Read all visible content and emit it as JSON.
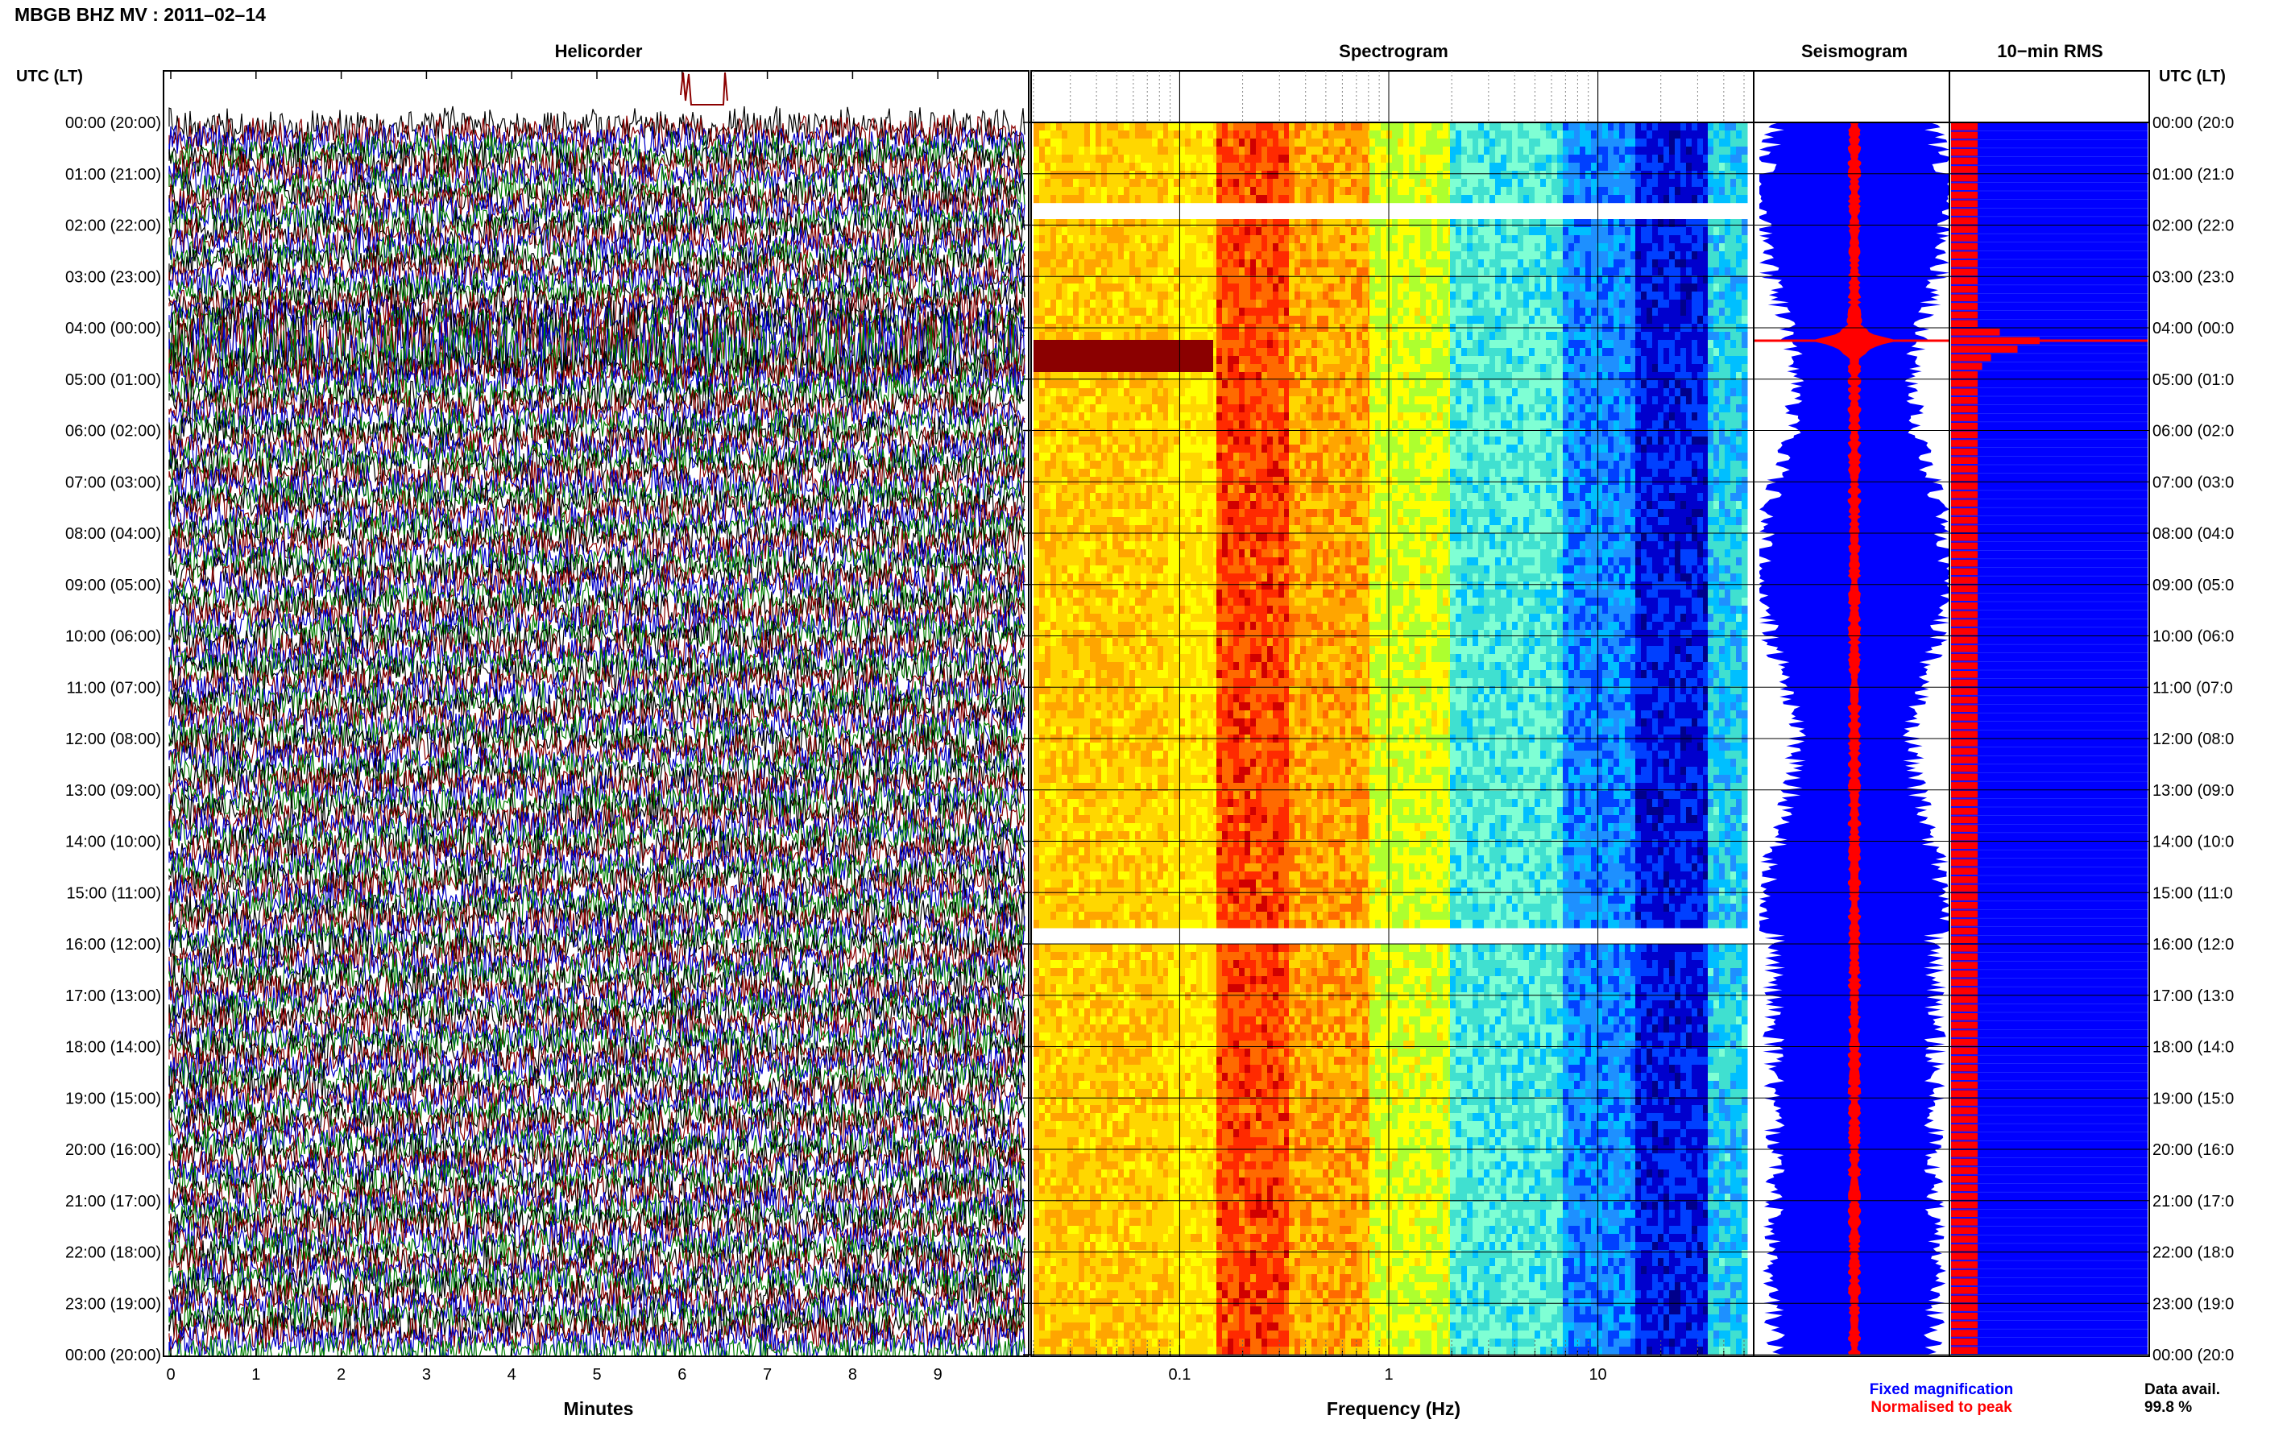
{
  "station_title": "MBGB BHZ MV : 2011–02–14",
  "utc_header_left": "UTC (LT)",
  "utc_header_right": "UTC (LT)",
  "panels": {
    "helicorder": "Helicorder",
    "spectrogram": "Spectrogram",
    "seismogram": "Seismogram",
    "rms": "10−min RMS"
  },
  "time_labels": [
    "00:00 (20:00)",
    "01:00 (21:00)",
    "02:00 (22:00)",
    "03:00 (23:00)",
    "04:00 (00:00)",
    "05:00 (01:00)",
    "06:00 (02:00)",
    "07:00 (03:00)",
    "08:00 (04:00)",
    "09:00 (05:00)",
    "10:00 (06:00)",
    "11:00 (07:00)",
    "12:00 (08:00)",
    "13:00 (09:00)",
    "14:00 (10:00)",
    "15:00 (11:00)",
    "16:00 (12:00)",
    "17:00 (13:00)",
    "18:00 (14:00)",
    "19:00 (15:00)",
    "20:00 (16:00)",
    "21:00 (17:00)",
    "22:00 (18:00)",
    "23:00 (19:00)",
    "00:00 (20:00)"
  ],
  "right_time_labels": [
    "00:00 (20:0",
    "01:00 (21:0",
    "02:00 (22:0",
    "03:00 (23:0",
    "04:00 (00:0",
    "05:00 (01:0",
    "06:00 (02:0",
    "07:00 (03:0",
    "08:00 (04:0",
    "09:00 (05:0",
    "10:00 (06:0",
    "11:00 (07:0",
    "12:00 (08:0",
    "13:00 (09:0",
    "14:00 (10:0",
    "15:00 (11:0",
    "16:00 (12:0",
    "17:00 (13:0",
    "18:00 (14:0",
    "19:00 (15:0",
    "20:00 (16:0",
    "21:00 (17:0",
    "22:00 (18:0",
    "23:00 (19:0",
    "00:00 (20:0"
  ],
  "helicorder_x": {
    "label": "Minutes",
    "ticks": [
      "0",
      "1",
      "2",
      "3",
      "4",
      "5",
      "6",
      "7",
      "8",
      "9"
    ],
    "range": [
      0,
      10
    ],
    "trace_colors": [
      "#000000",
      "#8b0000",
      "#0000cc",
      "#008000"
    ]
  },
  "spectrogram_x": {
    "label": "Frequency (Hz)",
    "ticks": [
      "0.1",
      "1",
      "10"
    ],
    "scale": "log",
    "range": [
      0.02,
      50
    ]
  },
  "legend": {
    "fixed": "Fixed magnification",
    "normalised": "Normalised to peak",
    "fixed_color": "#0000ff",
    "normalised_color": "#ff0000"
  },
  "data_avail": {
    "label": "Data avail.",
    "value": "99.8 %"
  },
  "chart_data": {
    "type": "heatmap",
    "title": "MBGB BHZ MV : 2011–02–14",
    "y_axis": "UTC (LT)",
    "y_range_hours": [
      0,
      24
    ],
    "events": [
      {
        "utc_hour": 4.25,
        "description_visible": false,
        "peak_rms_bin": true
      }
    ],
    "gaps_utc_hours": [
      1.65,
      15.8
    ],
    "rms_10min_relative": [
      0.3,
      0.3,
      0.3,
      0.3,
      0.3,
      0.3,
      0.3,
      0.3,
      0.3,
      0.3,
      0.3,
      0.3,
      0.3,
      0.3,
      0.3,
      0.3,
      0.3,
      0.3,
      0.3,
      0.3,
      0.3,
      0.3,
      0.3,
      0.3,
      0.55,
      1.0,
      0.75,
      0.45,
      0.35,
      0.3,
      0.3,
      0.3,
      0.3,
      0.3,
      0.3,
      0.3,
      0.3,
      0.3,
      0.3,
      0.3,
      0.3,
      0.3,
      0.3,
      0.3,
      0.3,
      0.3,
      0.3,
      0.3,
      0.3,
      0.3,
      0.3,
      0.3,
      0.3,
      0.3,
      0.3,
      0.3,
      0.3,
      0.3,
      0.3,
      0.3,
      0.3,
      0.3,
      0.3,
      0.3,
      0.3,
      0.3,
      0.3,
      0.3,
      0.3,
      0.3,
      0.3,
      0.3,
      0.3,
      0.3,
      0.3,
      0.3,
      0.3,
      0.3,
      0.3,
      0.3,
      0.3,
      0.3,
      0.3,
      0.3,
      0.3,
      0.3,
      0.3,
      0.3,
      0.3,
      0.3,
      0.3,
      0.3,
      0.3,
      0.3,
      0.3,
      0.3,
      0.3,
      0.3,
      0.3,
      0.3,
      0.3,
      0.3,
      0.3,
      0.3,
      0.3,
      0.3,
      0.3,
      0.3,
      0.3,
      0.3,
      0.3,
      0.3,
      0.3,
      0.3,
      0.3,
      0.3,
      0.3,
      0.3,
      0.3,
      0.3,
      0.3,
      0.3,
      0.3,
      0.3,
      0.3,
      0.3,
      0.3,
      0.3,
      0.3,
      0.3,
      0.3,
      0.3,
      0.3,
      0.3,
      0.3,
      0.3,
      0.3,
      0.3,
      0.3,
      0.3,
      0.3,
      0.3,
      0.3,
      0.3
    ],
    "colors": {
      "fixed": "#0000ff",
      "normalised": "#ff0000"
    }
  }
}
